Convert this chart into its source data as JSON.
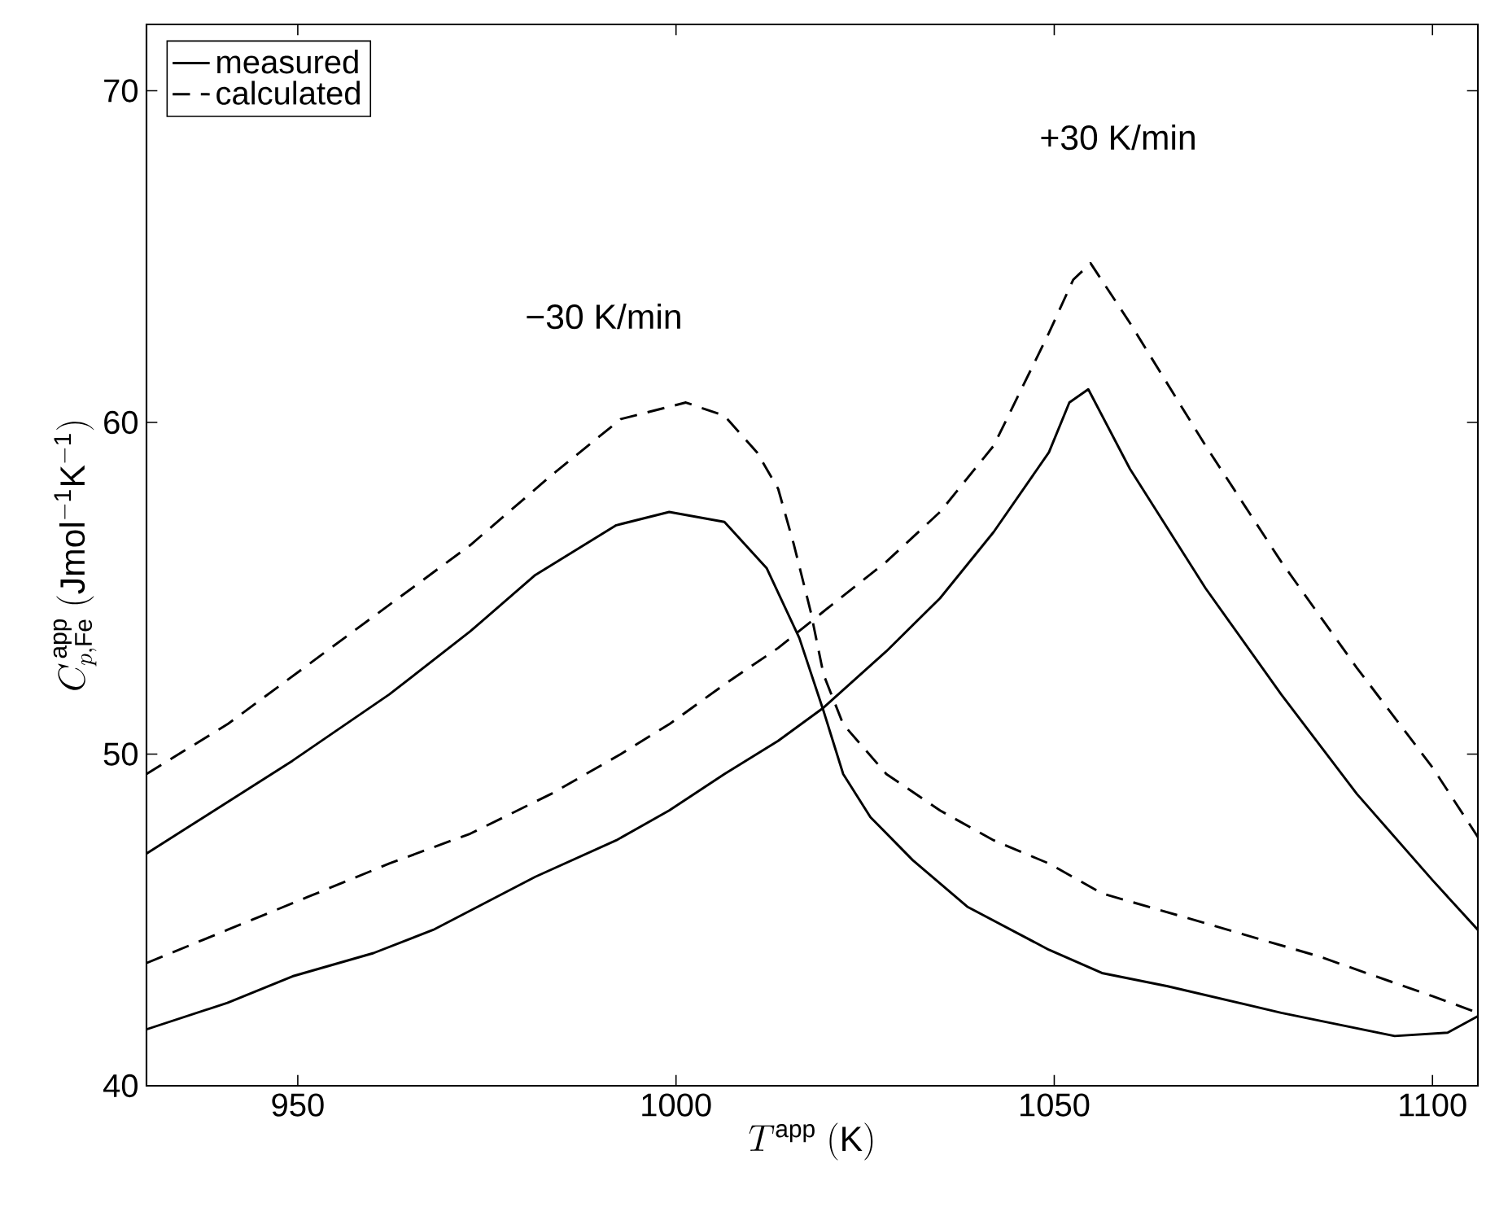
{
  "chart_data": {
    "type": "line",
    "xlabel": "T^{\\mathrm{app}}\\ \\mathrm{(K)}",
    "ylabel": "C^{\\,\\mathrm{app}}_{p,\\mathrm{Fe}}\\ \\mathrm{(Jmol^{-1}K^{-1})}",
    "xlim": [
      930,
      1106
    ],
    "ylim": [
      40,
      72
    ],
    "xticks": [
      950,
      1000,
      1050,
      1100
    ],
    "yticks": [
      40,
      50,
      60,
      70
    ],
    "legend": "top left",
    "annotations": [
      "−30 K/min",
      "+30 K/min"
    ],
    "series": [
      {
        "name": "measured",
        "color": "#000000",
        "line_style": "solid",
        "x": [
          930,
          949.3,
          962.1,
          972.8,
          981.4,
          992.1,
          999.1,
          1006.4,
          1012,
          1016.3,
          1019.5,
          1022.1,
          1025.7,
          1031.3,
          1038.5,
          1049.3,
          1056.3,
          1065,
          1080,
          1095,
          1102,
          1106
        ],
        "values": [
          47.0,
          49.8,
          51.8,
          53.7,
          55.4,
          56.9,
          57.3,
          57.0,
          55.6,
          53.5,
          51.3,
          49.4,
          48.1,
          46.8,
          45.4,
          44.1,
          43.4,
          43.0,
          42.2,
          41.5,
          41.6,
          42.1
        ]
      },
      {
        "name": "calculated",
        "color": "#000000",
        "line_style": "dashed",
        "x": [
          930,
          940.7,
          951.4,
          962.1,
          972.8,
          983.5,
          992.7,
          1001.3,
          1006.4,
          1010.7,
          1013.5,
          1015.6,
          1017.8,
          1019.5,
          1022.1,
          1027.8,
          1034.9,
          1042,
          1049.3,
          1056.3,
          1070,
          1085,
          1100,
          1106
        ],
        "values": [
          49.4,
          50.9,
          52.7,
          54.5,
          56.3,
          58.4,
          60.1,
          60.6,
          60.2,
          59.1,
          58.0,
          56.3,
          54.3,
          52.4,
          50.9,
          49.4,
          48.3,
          47.4,
          46.7,
          45.8,
          44.9,
          43.9,
          42.7,
          42.2
        ]
      },
      {
        "color": "#000000",
        "line_style": "solid",
        "x": [
          930,
          940.7,
          949.3,
          960,
          967.9,
          981.4,
          992.1,
          999.1,
          1006.4,
          1013.5,
          1019.5,
          1027.8,
          1034.9,
          1042,
          1049.3,
          1052,
          1054.5,
          1060,
          1070,
          1080,
          1090,
          1100,
          1106
        ],
        "values": [
          41.7,
          42.5,
          43.3,
          44.0,
          44.7,
          46.3,
          47.4,
          48.3,
          49.4,
          50.4,
          51.4,
          53.1,
          54.7,
          56.7,
          59.1,
          60.6,
          61.0,
          58.6,
          55.0,
          51.8,
          48.8,
          46.2,
          44.7
        ]
      },
      {
        "color": "#000000",
        "line_style": "dashed",
        "x": [
          930,
          940.7,
          951.4,
          962.1,
          972.8,
          983.5,
          992.7,
          999.1,
          1006.4,
          1013.5,
          1020.6,
          1027.8,
          1034.9,
          1042,
          1049.3,
          1052.5,
          1054.8,
          1060,
          1070,
          1080,
          1090,
          1100,
          1106
        ],
        "values": [
          43.7,
          44.7,
          45.7,
          46.7,
          47.6,
          48.8,
          50.0,
          50.9,
          52.1,
          53.2,
          54.5,
          55.8,
          57.3,
          59.3,
          62.7,
          64.3,
          64.8,
          63.0,
          59.3,
          55.8,
          52.6,
          49.6,
          47.5
        ]
      }
    ]
  }
}
